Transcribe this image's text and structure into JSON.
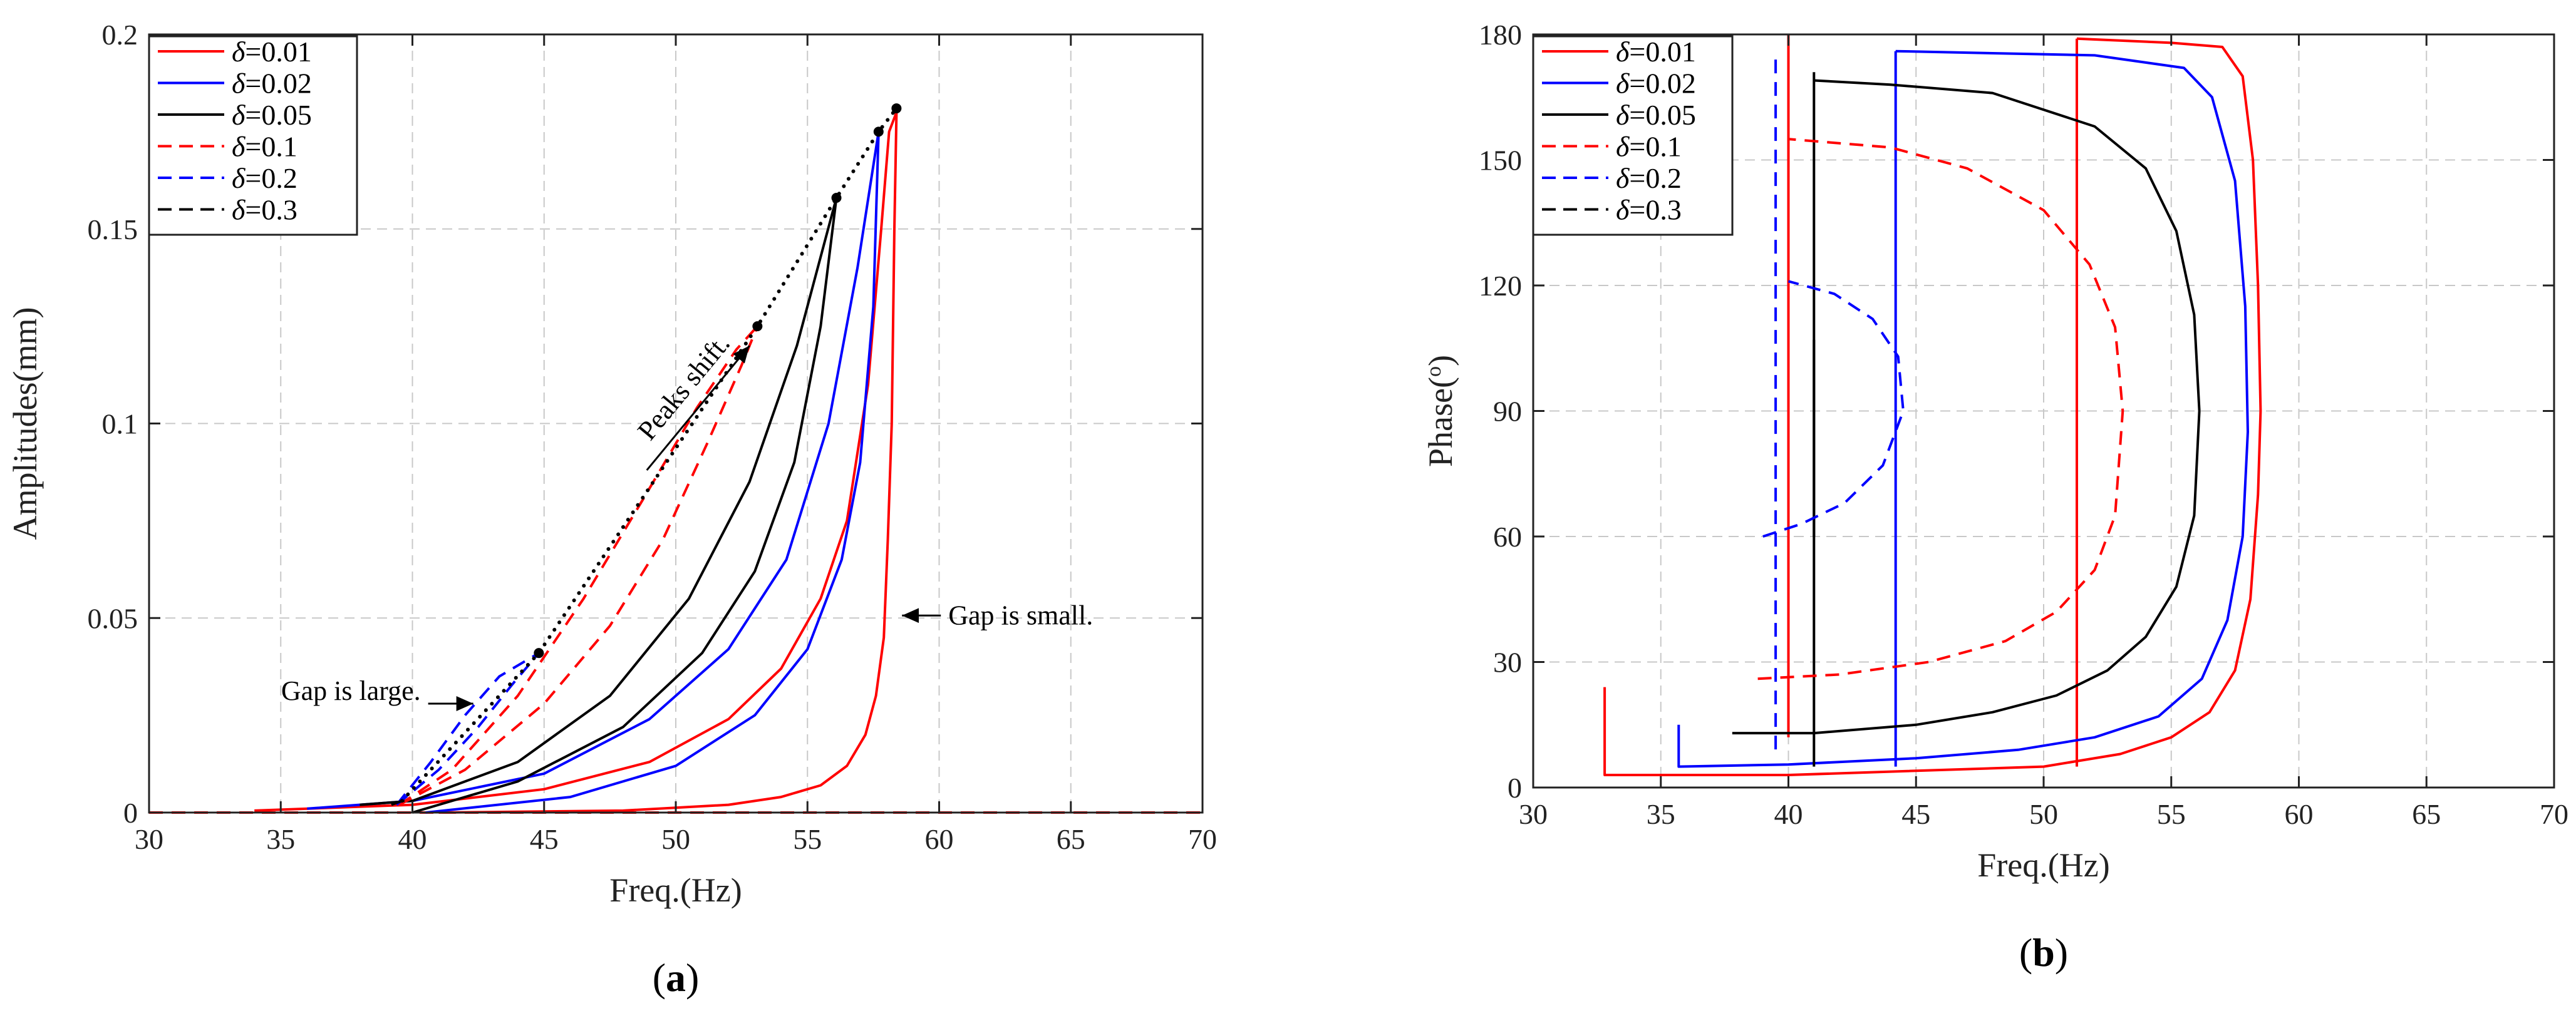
{
  "chart_data": [
    {
      "type": "line",
      "panel": "a",
      "caption_open": "(",
      "caption_letter": "a",
      "caption_close": ")",
      "title": "",
      "xlabel": "Freq.(Hz)",
      "ylabel": "Amplitudes(mm)",
      "xlim": [
        30,
        70
      ],
      "ylim": [
        0,
        0.2
      ],
      "xticks": [
        30,
        35,
        40,
        45,
        50,
        55,
        60,
        65,
        70
      ],
      "yticks": [
        0,
        0.05,
        0.1,
        0.15,
        0.2
      ],
      "ytick_labels": [
        "0",
        "0.05",
        "0.1",
        "0.15",
        "0.2"
      ],
      "grid": true,
      "legend_position": "top-left",
      "series": [
        {
          "name": "δ=0.01",
          "greek": "δ",
          "suffix": "=0.01",
          "color": "#ff0000",
          "style": "solid",
          "branches": [
            [
              [
                41,
                0
              ],
              [
                48,
                0.0005
              ],
              [
                52,
                0.002
              ],
              [
                54,
                0.004
              ],
              [
                55.5,
                0.007
              ],
              [
                56.5,
                0.012
              ],
              [
                57.2,
                0.02
              ],
              [
                57.6,
                0.03
              ],
              [
                57.9,
                0.045
              ],
              [
                58.05,
                0.07
              ],
              [
                58.2,
                0.1
              ],
              [
                58.3,
                0.15
              ],
              [
                58.38,
                0.18
              ]
            ],
            [
              [
                34,
                0.0005
              ],
              [
                40,
                0.002
              ],
              [
                45,
                0.006
              ],
              [
                49,
                0.013
              ],
              [
                52,
                0.024
              ],
              [
                54,
                0.037
              ],
              [
                55.5,
                0.055
              ],
              [
                56.5,
                0.075
              ],
              [
                57.3,
                0.11
              ],
              [
                57.8,
                0.15
              ],
              [
                58.1,
                0.175
              ],
              [
                58.38,
                0.18
              ]
            ]
          ]
        },
        {
          "name": "δ=0.02",
          "greek": "δ",
          "suffix": "=0.02",
          "color": "#0000ff",
          "style": "solid",
          "branches": [
            [
              [
                40.5,
                0
              ],
              [
                46,
                0.004
              ],
              [
                50,
                0.012
              ],
              [
                53,
                0.025
              ],
              [
                55,
                0.042
              ],
              [
                56.3,
                0.065
              ],
              [
                57,
                0.09
              ],
              [
                57.5,
                0.13
              ],
              [
                57.7,
                0.175
              ]
            ],
            [
              [
                36,
                0.001
              ],
              [
                40,
                0.003
              ],
              [
                45,
                0.01
              ],
              [
                49,
                0.024
              ],
              [
                52,
                0.042
              ],
              [
                54.2,
                0.065
              ],
              [
                55.8,
                0.1
              ],
              [
                56.9,
                0.14
              ],
              [
                57.7,
                0.175
              ]
            ]
          ]
        },
        {
          "name": "δ=0.05",
          "greek": "δ",
          "suffix": "=0.05",
          "color": "#000000",
          "style": "solid",
          "branches": [
            [
              [
                40,
                0
              ],
              [
                44,
                0.008
              ],
              [
                48,
                0.022
              ],
              [
                51,
                0.041
              ],
              [
                53,
                0.062
              ],
              [
                54.5,
                0.09
              ],
              [
                55.5,
                0.125
              ],
              [
                56.1,
                0.158
              ]
            ],
            [
              [
                38,
                0.002
              ],
              [
                40,
                0.003
              ],
              [
                44,
                0.013
              ],
              [
                47.5,
                0.03
              ],
              [
                50.5,
                0.055
              ],
              [
                52.8,
                0.085
              ],
              [
                54.6,
                0.12
              ],
              [
                56.1,
                0.158
              ]
            ]
          ]
        },
        {
          "name": "δ=0.1",
          "greek": "δ",
          "suffix": "=0.1",
          "color": "#ff0000",
          "style": "dashed",
          "branches": [
            [
              [
                39.5,
                0.002
              ],
              [
                42,
                0.011
              ],
              [
                45,
                0.028
              ],
              [
                47.5,
                0.048
              ],
              [
                49.5,
                0.07
              ],
              [
                51.2,
                0.095
              ],
              [
                52.5,
                0.115
              ],
              [
                53.1,
                0.125
              ]
            ],
            [
              [
                39.5,
                0.002
              ],
              [
                41.5,
                0.011
              ],
              [
                44,
                0.03
              ],
              [
                46.5,
                0.055
              ],
              [
                48.8,
                0.081
              ],
              [
                50.8,
                0.104
              ],
              [
                52.3,
                0.119
              ],
              [
                53.1,
                0.125
              ]
            ]
          ]
        },
        {
          "name": "δ=0.2",
          "greek": "δ",
          "suffix": "=0.2",
          "color": "#0000ff",
          "style": "dashed",
          "branches": [
            [
              [
                39.4,
                0.002
              ],
              [
                41,
                0.011
              ],
              [
                42.5,
                0.022
              ],
              [
                43.8,
                0.033
              ],
              [
                44.8,
                0.041
              ]
            ],
            [
              [
                39.4,
                0.002
              ],
              [
                40.7,
                0.013
              ],
              [
                42,
                0.025
              ],
              [
                43.3,
                0.035
              ],
              [
                44.8,
                0.041
              ]
            ]
          ]
        },
        {
          "name": "δ=0.3",
          "greek": "δ",
          "suffix": "=0.3",
          "color": "#000000",
          "style": "dashed",
          "branches": [
            [
              [
                39.2,
                0.002
              ],
              [
                39.6,
                0.003
              ],
              [
                39.9,
                0.003
              ]
            ]
          ]
        }
      ],
      "baseline": {
        "color": "#ff0000",
        "points": [
          [
            30,
            0
          ],
          [
            70,
            0
          ]
        ]
      },
      "peaks": [
        [
          44.8,
          0.041
        ],
        [
          53.1,
          0.125
        ],
        [
          56.1,
          0.158
        ],
        [
          57.7,
          0.175
        ],
        [
          58.38,
          0.181
        ]
      ],
      "peak_path_extra": [
        [
          39.6,
          0.003
        ]
      ],
      "annotations": {
        "gap_small": {
          "text": "Gap is small.",
          "at": [
            58.4,
            0.05
          ]
        },
        "gap_large": {
          "text": "Gap is large.",
          "at": [
            42.5,
            0.028
          ]
        },
        "peaks_shift": {
          "text": "Peaks  shift.",
          "from": [
            48.9,
            0.088
          ],
          "to": [
            52.8,
            0.12
          ]
        }
      }
    },
    {
      "type": "line",
      "panel": "b",
      "caption_open": "(",
      "caption_letter": "b",
      "caption_close": ")",
      "title": "",
      "xlabel": "Freq.(Hz)",
      "ylabel_main": "Phase(",
      "ylabel_sup": "o",
      "ylabel_close": ")",
      "xlim": [
        30,
        70
      ],
      "ylim": [
        0,
        180
      ],
      "xticks": [
        30,
        35,
        40,
        45,
        50,
        55,
        60,
        65,
        70
      ],
      "yticks": [
        0,
        30,
        60,
        90,
        120,
        150,
        180
      ],
      "grid": true,
      "legend_position": "top-left",
      "series": [
        {
          "name": "δ=0.01",
          "greek": "δ",
          "suffix": "=0.01",
          "color": "#ff0000",
          "style": "solid",
          "branches": [
            [
              [
                32.8,
                24
              ],
              [
                32.8,
                3
              ],
              [
                40,
                3
              ],
              [
                50,
                5
              ],
              [
                53,
                8
              ],
              [
                55,
                12
              ],
              [
                56.5,
                18
              ],
              [
                57.5,
                28
              ],
              [
                58.1,
                45
              ],
              [
                58.4,
                70
              ],
              [
                58.5,
                90
              ],
              [
                58.4,
                120
              ],
              [
                58.2,
                150
              ],
              [
                57.8,
                170
              ],
              [
                57,
                177
              ],
              [
                55,
                178
              ],
              [
                51.3,
                179
              ]
            ],
            [
              [
                51.3,
                179
              ],
              [
                51.3,
                5
              ]
            ],
            [
              [
                40,
                180
              ],
              [
                40,
                12
              ]
            ]
          ]
        },
        {
          "name": "δ=0.02",
          "greek": "δ",
          "suffix": "=0.02",
          "color": "#0000ff",
          "style": "solid",
          "branches": [
            [
              [
                35.7,
                15
              ],
              [
                35.7,
                5
              ],
              [
                40,
                5.5
              ],
              [
                45,
                7
              ],
              [
                49,
                9
              ],
              [
                52,
                12
              ],
              [
                54.5,
                17
              ],
              [
                56.2,
                26
              ],
              [
                57.2,
                40
              ],
              [
                57.8,
                60
              ],
              [
                58,
                85
              ],
              [
                57.9,
                115
              ],
              [
                57.5,
                145
              ],
              [
                56.6,
                165
              ],
              [
                55.5,
                172
              ],
              [
                52,
                175
              ],
              [
                44.2,
                176
              ]
            ],
            [
              [
                44.2,
                176
              ],
              [
                44.2,
                5
              ]
            ]
          ]
        },
        {
          "name": "δ=0.05",
          "greek": "δ",
          "suffix": "=0.05",
          "color": "#000000",
          "style": "solid",
          "branches": [
            [
              [
                37.8,
                13
              ],
              [
                41,
                13
              ],
              [
                45,
                15
              ],
              [
                48,
                18
              ],
              [
                50.5,
                22
              ],
              [
                52.5,
                28
              ],
              [
                54,
                36
              ],
              [
                55.2,
                48
              ],
              [
                55.9,
                65
              ],
              [
                56.1,
                90
              ],
              [
                55.9,
                113
              ],
              [
                55.2,
                133
              ],
              [
                54,
                148
              ],
              [
                52,
                158
              ],
              [
                48,
                166
              ],
              [
                44,
                168
              ],
              [
                41,
                169
              ]
            ],
            [
              [
                41,
                171
              ],
              [
                41,
                5
              ]
            ],
            [
              [
                41,
                107
              ],
              [
                41,
                60
              ]
            ]
          ]
        },
        {
          "name": "δ=0.1",
          "greek": "δ",
          "suffix": "=0.1",
          "color": "#ff0000",
          "style": "dashed",
          "branches": [
            [
              [
                38.8,
                26
              ],
              [
                42,
                27
              ],
              [
                45.5,
                30
              ],
              [
                48.5,
                35
              ],
              [
                50.5,
                42
              ],
              [
                52,
                52
              ],
              [
                52.8,
                65
              ],
              [
                53.1,
                90
              ],
              [
                52.8,
                110
              ],
              [
                51.8,
                125
              ],
              [
                50,
                138
              ],
              [
                47,
                148
              ],
              [
                44,
                153
              ],
              [
                40,
                155
              ]
            ]
          ]
        },
        {
          "name": "δ=0.2",
          "greek": "δ",
          "suffix": "=0.2",
          "color": "#0000ff",
          "style": "dashed",
          "branches": [
            [
              [
                39,
                60
              ],
              [
                40.5,
                63
              ],
              [
                42.2,
                68
              ],
              [
                43.7,
                77
              ],
              [
                44.5,
                90
              ],
              [
                44.3,
                103
              ],
              [
                43.3,
                112
              ],
              [
                41.8,
                118
              ],
              [
                40,
                121
              ]
            ],
            [
              [
                39.5,
                174
              ],
              [
                39.5,
                8
              ]
            ]
          ]
        },
        {
          "name": "δ=0.3",
          "greek": "δ",
          "suffix": "=0.3",
          "color": "#000000",
          "style": "dashed",
          "branches": []
        }
      ]
    }
  ]
}
